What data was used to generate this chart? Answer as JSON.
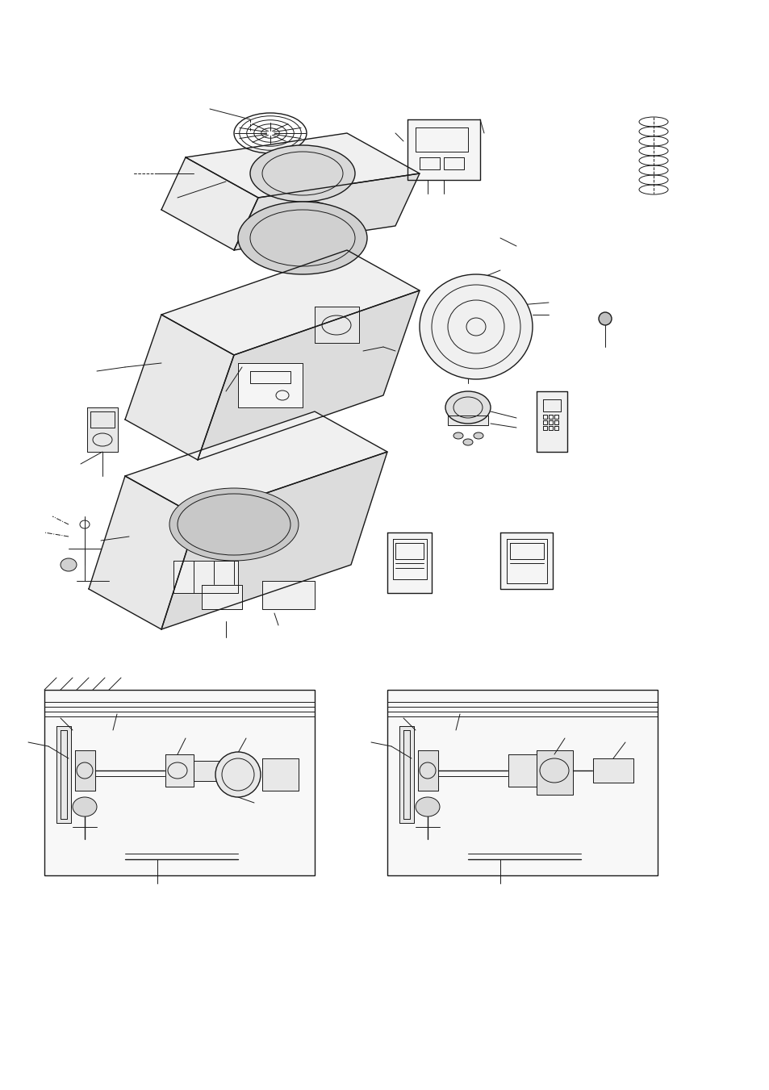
{
  "background_color": "#ffffff",
  "line_color": "#1a1a1a",
  "fig_width": 9.54,
  "fig_height": 13.51,
  "dpi": 100
}
